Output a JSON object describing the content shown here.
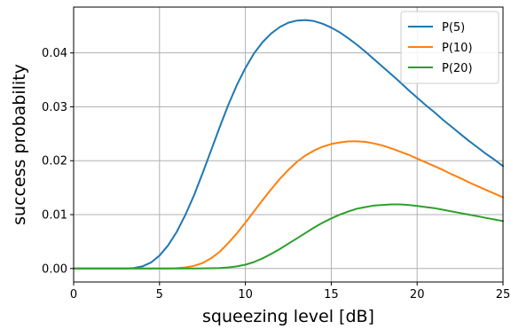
{
  "chart_data": {
    "type": "line",
    "title": "",
    "xlabel": "squeezing level [dB]",
    "ylabel": "success probability",
    "xlim": [
      0,
      25
    ],
    "ylim": [
      -0.0025,
      0.0485
    ],
    "grid": true,
    "legend_position": "top-right",
    "x_ticks": [
      "0",
      "5",
      "10",
      "15",
      "20",
      "25"
    ],
    "y_ticks": [
      "0.00",
      "0.01",
      "0.02",
      "0.03",
      "0.04"
    ],
    "series": [
      {
        "name": "P(5)",
        "color": "#1f77b4",
        "x": [
          0,
          1,
          2,
          3,
          3.5,
          4,
          4.5,
          5,
          5.5,
          6,
          6.5,
          7,
          7.5,
          8,
          8.5,
          9,
          9.5,
          10,
          10.5,
          11,
          11.5,
          12,
          12.5,
          13,
          13.5,
          14,
          14.5,
          15,
          15.5,
          16,
          16.5,
          17,
          17.5,
          18,
          18.5,
          19,
          19.5,
          20,
          20.5,
          21,
          21.5,
          22,
          22.5,
          23,
          23.5,
          24,
          24.5,
          25
        ],
        "y": [
          0,
          0,
          0,
          2e-05,
          0.0001,
          0.0004,
          0.0011,
          0.0024,
          0.0043,
          0.0068,
          0.0099,
          0.0135,
          0.0176,
          0.0219,
          0.0262,
          0.0303,
          0.034,
          0.0372,
          0.0399,
          0.042,
          0.0436,
          0.0448,
          0.0456,
          0.046,
          0.0461,
          0.0459,
          0.0454,
          0.0447,
          0.0438,
          0.0427,
          0.0415,
          0.0402,
          0.0388,
          0.0374,
          0.036,
          0.0346,
          0.0331,
          0.0317,
          0.0303,
          0.029,
          0.0276,
          0.0263,
          0.025,
          0.0237,
          0.0225,
          0.0213,
          0.0202,
          0.019
        ]
      },
      {
        "name": "P(10)",
        "color": "#ff7f0e",
        "x": [
          0,
          5,
          5.5,
          6,
          6.5,
          7,
          7.5,
          8,
          8.5,
          9,
          9.5,
          10,
          10.5,
          11,
          11.5,
          12,
          12.5,
          13,
          13.5,
          14,
          14.5,
          15,
          15.5,
          16,
          16.5,
          17,
          17.5,
          18,
          18.5,
          19,
          19.5,
          20,
          20.5,
          21,
          21.5,
          22,
          22.5,
          23,
          23.5,
          24,
          24.5,
          25
        ],
        "y": [
          0,
          0,
          2e-05,
          6e-05,
          0.0002,
          0.0005,
          0.001,
          0.0019,
          0.0031,
          0.0047,
          0.0065,
          0.0085,
          0.0106,
          0.0127,
          0.0147,
          0.0166,
          0.0183,
          0.0198,
          0.021,
          0.0219,
          0.0226,
          0.0231,
          0.0234,
          0.0236,
          0.0236,
          0.0235,
          0.0232,
          0.0228,
          0.0223,
          0.0217,
          0.0211,
          0.0204,
          0.0197,
          0.019,
          0.0183,
          0.0175,
          0.0168,
          0.016,
          0.0153,
          0.0146,
          0.0139,
          0.0132
        ]
      },
      {
        "name": "P(20)",
        "color": "#2ca02c",
        "x": [
          0,
          7,
          8,
          8.5,
          9,
          9.5,
          10,
          10.5,
          11,
          11.5,
          12,
          12.5,
          13,
          13.5,
          14,
          14.5,
          15,
          15.5,
          16,
          16.5,
          17,
          17.5,
          18,
          18.5,
          19,
          19.5,
          20,
          20.5,
          21,
          21.5,
          22,
          22.5,
          23,
          23.5,
          24,
          24.5,
          25
        ],
        "y": [
          0,
          0,
          5e-05,
          0.0001,
          0.0002,
          0.0004,
          0.0007,
          0.0012,
          0.0019,
          0.0027,
          0.0036,
          0.0046,
          0.0056,
          0.0066,
          0.0076,
          0.0085,
          0.0093,
          0.01,
          0.0106,
          0.0111,
          0.0114,
          0.0117,
          0.0118,
          0.0119,
          0.0119,
          0.0118,
          0.0116,
          0.0114,
          0.0112,
          0.0109,
          0.0106,
          0.0103,
          0.01,
          0.0097,
          0.0094,
          0.0091,
          0.0088
        ]
      }
    ]
  }
}
